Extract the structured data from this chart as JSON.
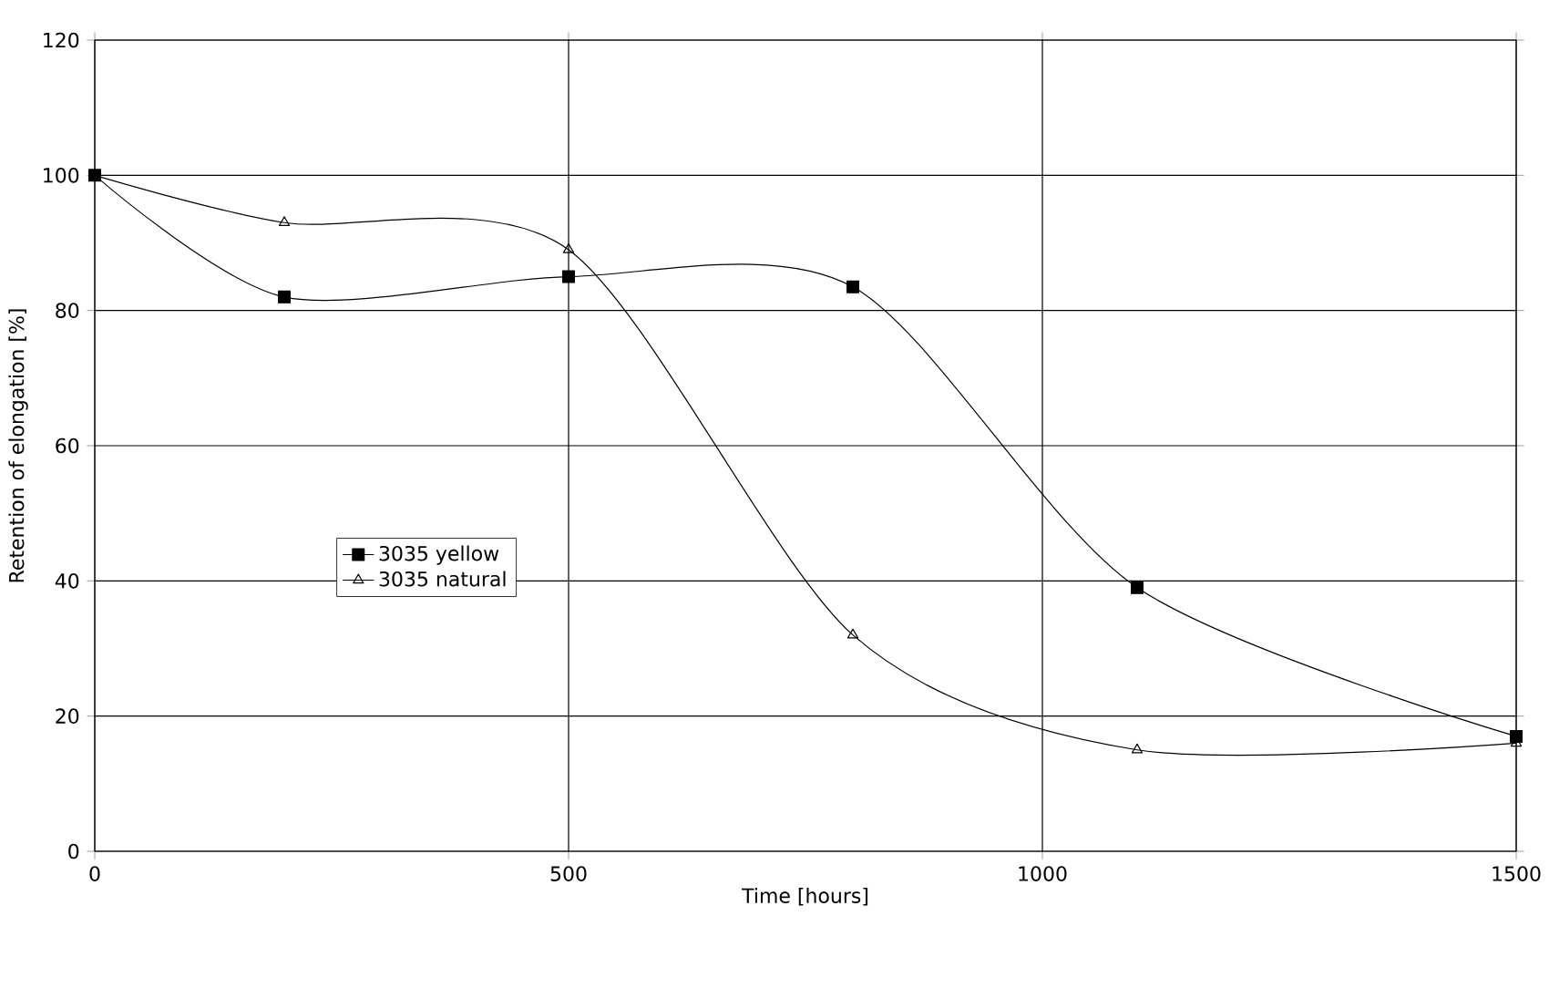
{
  "chart_data": {
    "type": "line",
    "xlabel": "Time [hours]",
    "ylabel": "Retention of elongation [%]",
    "x": [
      0,
      200,
      500,
      800,
      1100,
      1500
    ],
    "series": [
      {
        "name": "3035 yellow",
        "color": "#000000",
        "marker": "square",
        "values": [
          100,
          82,
          85,
          83.5,
          39,
          17
        ]
      },
      {
        "name": "3035 natural",
        "color": "#000000",
        "marker": "triangle",
        "values": [
          100,
          93,
          89,
          32,
          15,
          16
        ]
      }
    ],
    "xlim": [
      0,
      1500
    ],
    "xticks": [
      0,
      500,
      1000,
      1500
    ],
    "ylim": [
      0,
      120
    ],
    "yticks": [
      0,
      20,
      40,
      60,
      80,
      100,
      120
    ],
    "grid": true,
    "legend": "left",
    "line_style": "solid"
  }
}
